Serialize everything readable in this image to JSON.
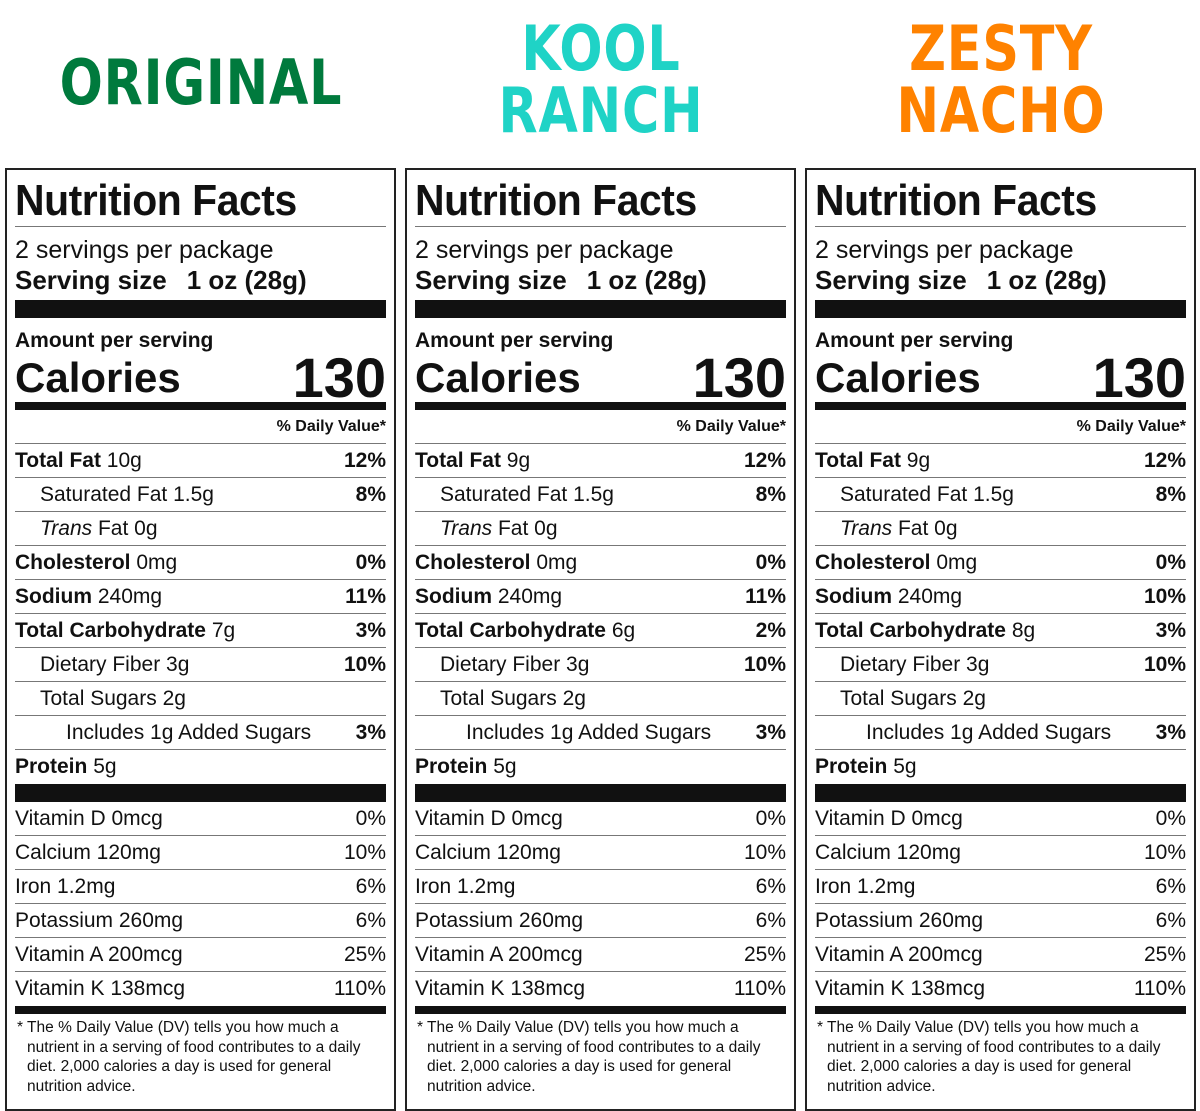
{
  "common": {
    "title": "Nutrition Facts",
    "servings": "2 servings per package",
    "serving_size_label": "Serving size",
    "serving_size": "1 oz (28g)",
    "amount_label": "Amount per serving",
    "calories_label": "Calories",
    "dv_header": "% Daily Value*",
    "footnote": "* The % Daily Value (DV) tells you how much a nutrient in a serving of food contributes to a daily diet. 2,000 calories a day is used for general nutrition advice."
  },
  "panels": [
    {
      "brand": "ORIGINAL",
      "brand_color": "#007a3d",
      "calories": "130",
      "nutrients": [
        {
          "name": "Total Fat",
          "amount": "10g",
          "dv": "12%",
          "style": "bold",
          "indent": 0
        },
        {
          "name": "Saturated Fat",
          "amount": "1.5g",
          "dv": "8%",
          "indent": 1
        },
        {
          "name": "Trans",
          "name2": "Fat",
          "amount": "0g",
          "dv": "",
          "indent": 1,
          "italic": true
        },
        {
          "name": "Cholesterol",
          "amount": "0mg",
          "dv": "0%",
          "style": "bold",
          "indent": 0
        },
        {
          "name": "Sodium",
          "amount": "240mg",
          "dv": "11%",
          "style": "bold",
          "indent": 0
        },
        {
          "name": "Total Carbohydrate",
          "amount": "7g",
          "dv": "3%",
          "style": "bold",
          "indent": 0
        },
        {
          "name": "Dietary Fiber",
          "amount": "3g",
          "dv": "10%",
          "indent": 1
        },
        {
          "name": "Total Sugars",
          "amount": "2g",
          "dv": "",
          "indent": 1
        },
        {
          "name": "Includes 1g Added Sugars",
          "amount": "",
          "dv": "3%",
          "indent": 2
        },
        {
          "name": "Protein",
          "amount": "5g",
          "dv": "",
          "style": "bold",
          "indent": 0
        }
      ],
      "vitamins": [
        {
          "name": "Vitamin D 0mcg",
          "dv": "0%"
        },
        {
          "name": "Calcium 120mg",
          "dv": "10%"
        },
        {
          "name": "Iron 1.2mg",
          "dv": "6%"
        },
        {
          "name": "Potassium 260mg",
          "dv": "6%"
        },
        {
          "name": "Vitamin A 200mcg",
          "dv": "25%"
        },
        {
          "name": "Vitamin K 138mcg",
          "dv": "110%"
        }
      ]
    },
    {
      "brand": "KOOL RANCH",
      "brand_color": "#1fd3c6",
      "calories": "130",
      "nutrients": [
        {
          "name": "Total Fat",
          "amount": "9g",
          "dv": "12%",
          "style": "bold",
          "indent": 0
        },
        {
          "name": "Saturated Fat",
          "amount": "1.5g",
          "dv": "8%",
          "indent": 1
        },
        {
          "name": "Trans",
          "name2": "Fat",
          "amount": "0g",
          "dv": "",
          "indent": 1,
          "italic": true
        },
        {
          "name": "Cholesterol",
          "amount": "0mg",
          "dv": "0%",
          "style": "bold",
          "indent": 0
        },
        {
          "name": "Sodium",
          "amount": "240mg",
          "dv": "11%",
          "style": "bold",
          "indent": 0
        },
        {
          "name": "Total Carbohydrate",
          "amount": "6g",
          "dv": "2%",
          "style": "bold",
          "indent": 0
        },
        {
          "name": "Dietary Fiber",
          "amount": "3g",
          "dv": "10%",
          "indent": 1
        },
        {
          "name": "Total Sugars",
          "amount": "2g",
          "dv": "",
          "indent": 1
        },
        {
          "name": "Includes 1g Added Sugars",
          "amount": "",
          "dv": "3%",
          "indent": 2
        },
        {
          "name": "Protein",
          "amount": "5g",
          "dv": "",
          "style": "bold",
          "indent": 0
        }
      ],
      "vitamins": [
        {
          "name": "Vitamin D 0mcg",
          "dv": "0%"
        },
        {
          "name": "Calcium 120mg",
          "dv": "10%"
        },
        {
          "name": "Iron 1.2mg",
          "dv": "6%"
        },
        {
          "name": "Potassium 260mg",
          "dv": "6%"
        },
        {
          "name": "Vitamin A 200mcg",
          "dv": "25%"
        },
        {
          "name": "Vitamin K 138mcg",
          "dv": "110%"
        }
      ]
    },
    {
      "brand": "ZESTY NACHO",
      "brand_color": "#ff8200",
      "calories": "130",
      "nutrients": [
        {
          "name": "Total Fat",
          "amount": "9g",
          "dv": "12%",
          "style": "bold",
          "indent": 0
        },
        {
          "name": "Saturated Fat",
          "amount": "1.5g",
          "dv": "8%",
          "indent": 1
        },
        {
          "name": "Trans",
          "name2": "Fat",
          "amount": "0g",
          "dv": "",
          "indent": 1,
          "italic": true
        },
        {
          "name": "Cholesterol",
          "amount": "0mg",
          "dv": "0%",
          "style": "bold",
          "indent": 0
        },
        {
          "name": "Sodium",
          "amount": "240mg",
          "dv": "10%",
          "style": "bold",
          "indent": 0
        },
        {
          "name": "Total Carbohydrate",
          "amount": "8g",
          "dv": "3%",
          "style": "bold",
          "indent": 0
        },
        {
          "name": "Dietary Fiber",
          "amount": "3g",
          "dv": "10%",
          "indent": 1
        },
        {
          "name": "Total Sugars",
          "amount": "2g",
          "dv": "",
          "indent": 1
        },
        {
          "name": "Includes 1g Added Sugars",
          "amount": "",
          "dv": "3%",
          "indent": 2
        },
        {
          "name": "Protein",
          "amount": "5g",
          "dv": "",
          "style": "bold",
          "indent": 0
        }
      ],
      "vitamins": [
        {
          "name": "Vitamin D 0mcg",
          "dv": "0%"
        },
        {
          "name": "Calcium 120mg",
          "dv": "10%"
        },
        {
          "name": "Iron 1.2mg",
          "dv": "6%"
        },
        {
          "name": "Potassium 260mg",
          "dv": "6%"
        },
        {
          "name": "Vitamin A 200mcg",
          "dv": "25%"
        },
        {
          "name": "Vitamin K 138mcg",
          "dv": "110%"
        }
      ]
    }
  ]
}
